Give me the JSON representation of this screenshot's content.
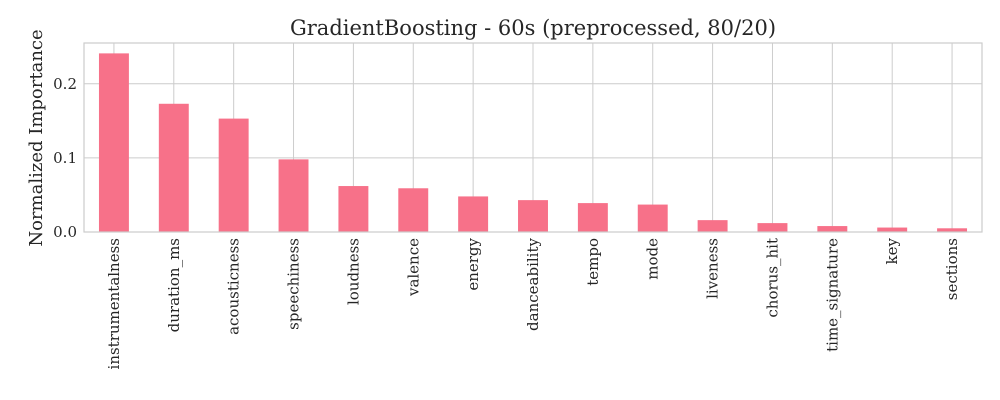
{
  "chart_data": {
    "type": "bar",
    "title": "GradientBoosting - 60s (preprocessed, 80/20)",
    "xlabel": "",
    "ylabel": "Normalized Importance",
    "categories": [
      "instrumentalness",
      "duration_ms",
      "acousticness",
      "speechiness",
      "loudness",
      "valence",
      "energy",
      "danceability",
      "tempo",
      "mode",
      "liveness",
      "chorus_hit",
      "time_signature",
      "key",
      "sections"
    ],
    "values": [
      0.241,
      0.173,
      0.153,
      0.098,
      0.062,
      0.059,
      0.048,
      0.043,
      0.039,
      0.037,
      0.016,
      0.012,
      0.008,
      0.006,
      0.005
    ],
    "ylim": [
      0,
      0.255
    ],
    "yticks": [
      0.0,
      0.1,
      0.2
    ],
    "ytick_labels": [
      "0.0",
      "0.1",
      "0.2"
    ],
    "grid": true,
    "bar_color": "#f77189",
    "grid_color": "#cccccc"
  }
}
